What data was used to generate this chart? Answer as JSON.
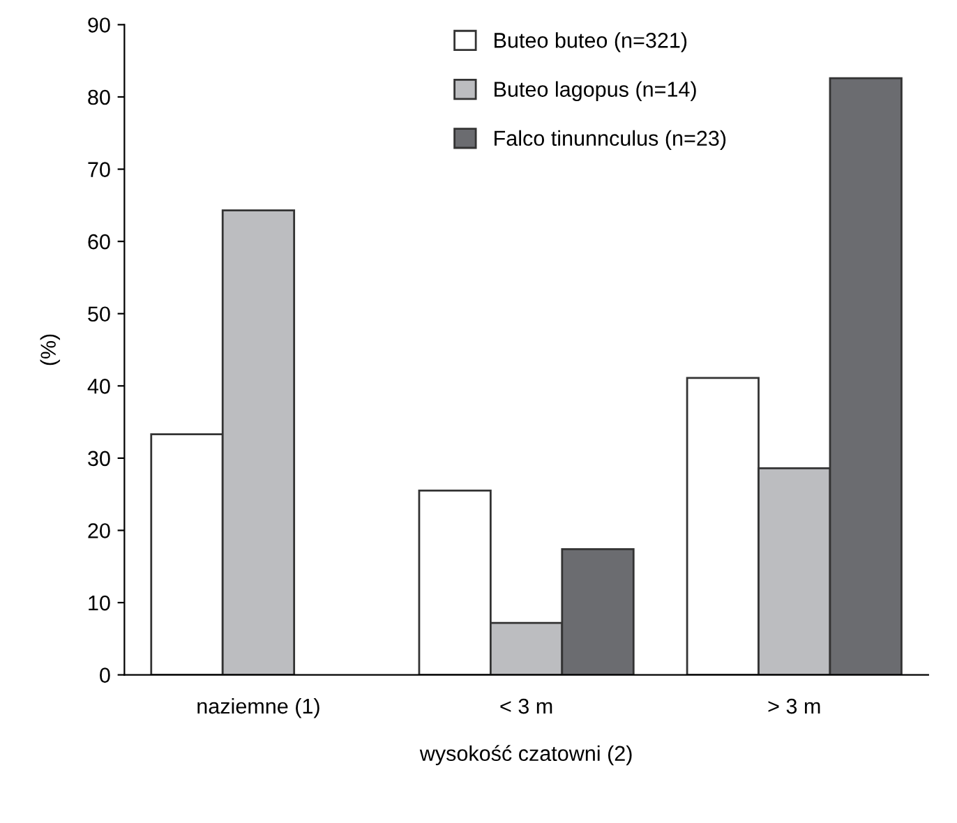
{
  "chart_data": {
    "type": "bar",
    "xlabel": "wysokość czatowni (2)",
    "ylabel": "(%)",
    "categories": [
      "naziemne (1)",
      "< 3 m",
      "> 3 m"
    ],
    "series": [
      {
        "name": "Buteo buteo (n=321)",
        "color": "#ffffff",
        "values": [
          33.3,
          25.5,
          41.1
        ]
      },
      {
        "name": "Buteo lagopus (n=14)",
        "color": "#bcbdc0",
        "values": [
          64.3,
          7.2,
          28.6
        ]
      },
      {
        "name": "Falco tinunnculus (n=23)",
        "color": "#6b6c70",
        "values": [
          null,
          17.4,
          82.6
        ]
      }
    ],
    "ylim": [
      0,
      90
    ],
    "yticks": [
      0,
      10,
      20,
      30,
      40,
      50,
      60,
      70,
      80,
      90
    ],
    "grid": false,
    "legend": "top"
  }
}
